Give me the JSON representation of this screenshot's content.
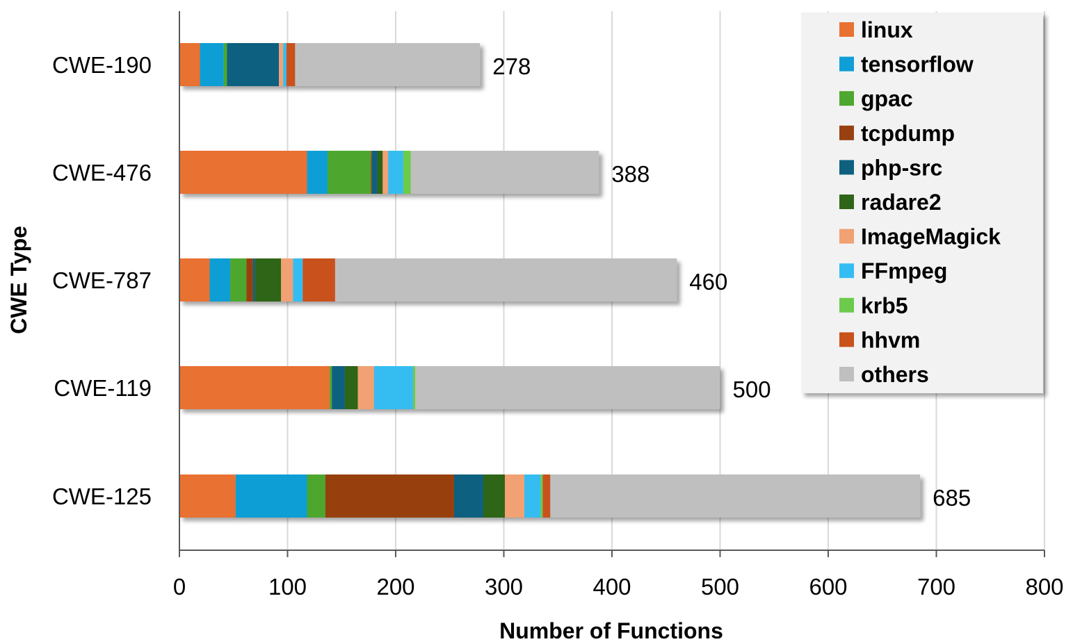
{
  "chart_data": {
    "type": "bar",
    "orientation": "horizontal",
    "stacked": true,
    "title": "",
    "xlabel": "Number of Functions",
    "ylabel": "CWE Type",
    "xlim": [
      0,
      800
    ],
    "xticks": [
      0,
      100,
      200,
      300,
      400,
      500,
      600,
      700,
      800
    ],
    "grid": true,
    "legend_position": "top-right",
    "categories": [
      "CWE-190",
      "CWE-476",
      "CWE-787",
      "CWE-119",
      "CWE-125"
    ],
    "totals": [
      278,
      388,
      460,
      500,
      685
    ],
    "series": [
      {
        "name": "linux",
        "color": "#E97132",
        "values": [
          19,
          118,
          28,
          139,
          52
        ]
      },
      {
        "name": "tensorflow",
        "color": "#0F9ED5",
        "values": [
          22,
          19,
          19,
          0,
          66
        ]
      },
      {
        "name": "gpac",
        "color": "#4EA72E",
        "values": [
          3,
          40,
          15,
          2,
          17
        ]
      },
      {
        "name": "tcpdump",
        "color": "#974011",
        "values": [
          0,
          1,
          6,
          0,
          119
        ]
      },
      {
        "name": "php-src",
        "color": "#0E607F",
        "values": [
          48,
          5,
          2,
          12,
          27
        ]
      },
      {
        "name": "radare2",
        "color": "#2E6518",
        "values": [
          0,
          5,
          24,
          12,
          20
        ]
      },
      {
        "name": "ImageMagick",
        "color": "#F1A173",
        "values": [
          4,
          5,
          11,
          15,
          18
        ]
      },
      {
        "name": "FFmpeg",
        "color": "#34BDF2",
        "values": [
          3,
          14,
          9,
          36,
          15
        ]
      },
      {
        "name": "krb5",
        "color": "#6CCB4C",
        "values": [
          0,
          7,
          0,
          2,
          2
        ]
      },
      {
        "name": "hhvm",
        "color": "#C9511A",
        "values": [
          8,
          0,
          30,
          0,
          7
        ]
      },
      {
        "name": "others",
        "color": "#BFBFBF",
        "values": [
          171,
          174,
          316,
          282,
          342
        ]
      }
    ]
  }
}
